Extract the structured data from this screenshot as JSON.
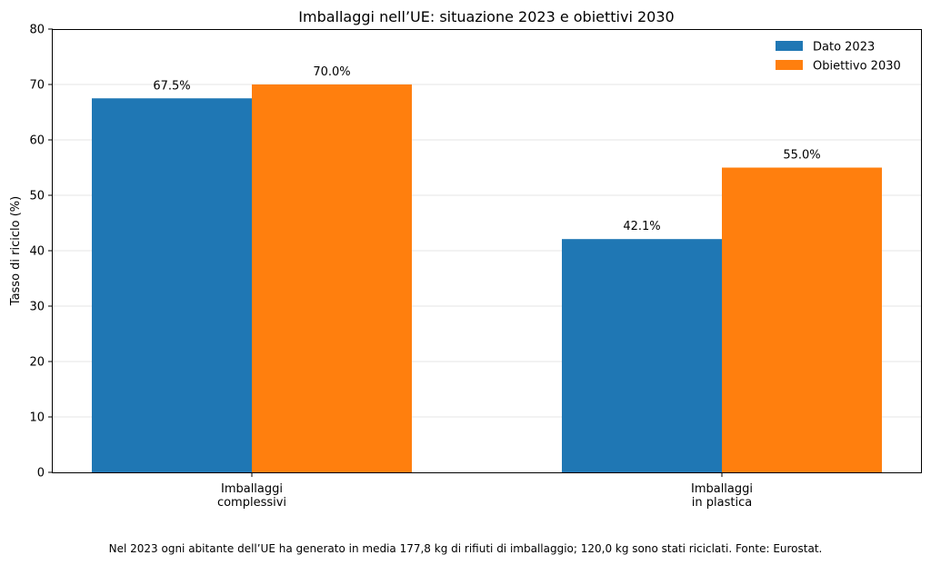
{
  "chart_data": {
    "type": "bar",
    "title": "Imballaggi nell’UE: situazione 2023 e obiettivi 2030",
    "ylabel": "Tasso di riciclo (%)",
    "xlabel": "",
    "ylim": [
      0,
      80
    ],
    "yticks": [
      0,
      10,
      20,
      30,
      40,
      50,
      60,
      70,
      80
    ],
    "grid": "horizontal",
    "legend_position": "top-right",
    "categories": [
      [
        "Imballaggi",
        "complessivi"
      ],
      [
        "Imballaggi",
        "in plastica"
      ]
    ],
    "series": [
      {
        "name": "Dato 2023",
        "color": "#1f77b4",
        "values": [
          67.5,
          42.1
        ],
        "labels": [
          "67.5%",
          "42.1%"
        ]
      },
      {
        "name": "Obiettivo 2030",
        "color": "#ff7f0e",
        "values": [
          70.0,
          55.0
        ],
        "labels": [
          "70.0%",
          "55.0%"
        ]
      }
    ]
  },
  "footnote": "Nel 2023 ogni abitante dell’UE ha generato in media 177,8 kg di rifiuti di imballaggio; 120,0 kg sono stati riciclati. Fonte: Eurostat."
}
